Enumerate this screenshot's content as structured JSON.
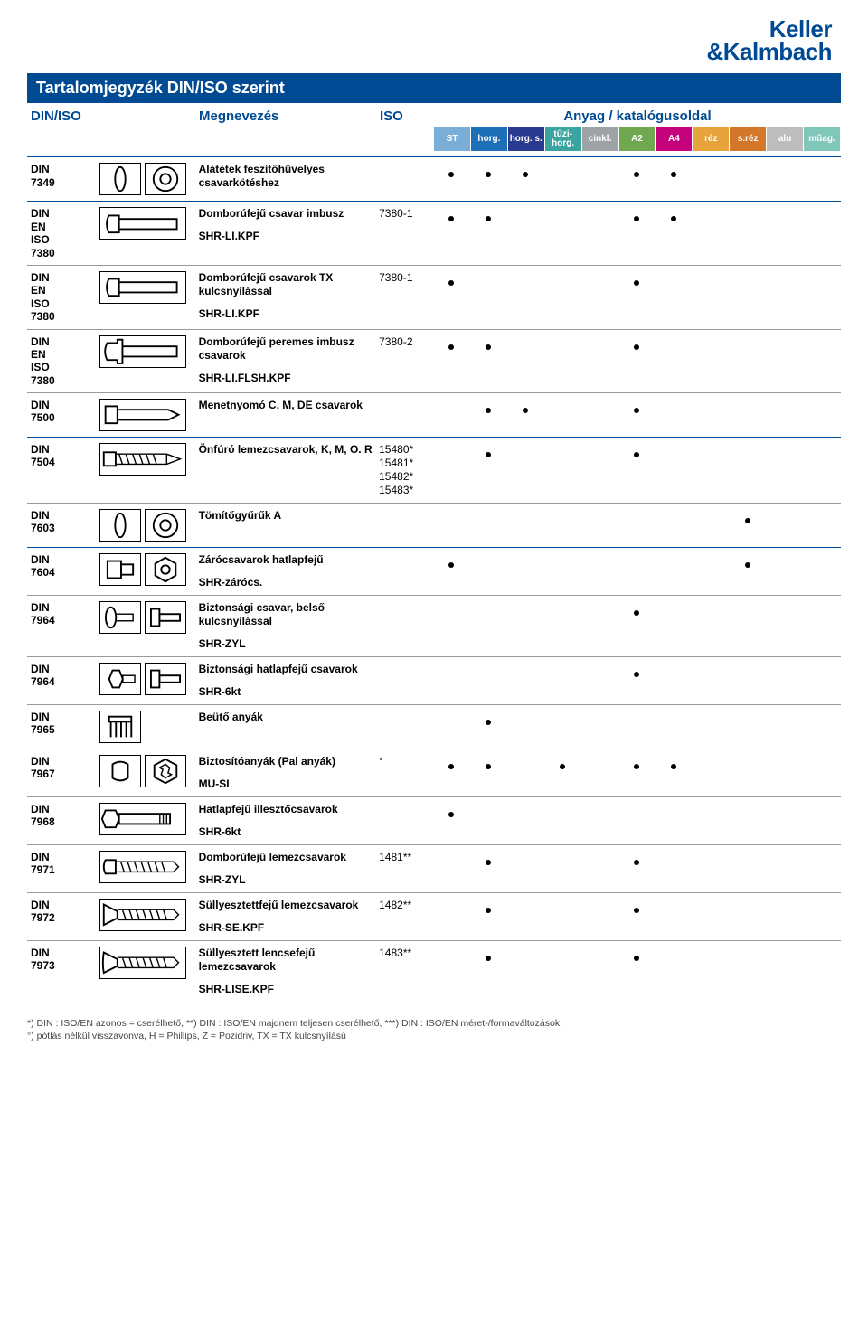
{
  "brand": {
    "line1": "Keller",
    "line2": "&Kalmbach"
  },
  "title": "Tartalomjegyzék DIN/ISO szerint",
  "headers": {
    "din": "DIN/ISO",
    "name": "Megnevezés",
    "iso": "ISO",
    "materials": "Anyag / katalógusoldal"
  },
  "material_columns": [
    {
      "label": "ST",
      "color": "#7aaed6"
    },
    {
      "label": "horg.",
      "color": "#1d70b7"
    },
    {
      "label": "horg. s.",
      "color": "#2a3a8f"
    },
    {
      "label": "tűzi-horg.",
      "color": "#3aa4a0"
    },
    {
      "label": "cinkl.",
      "color": "#9ea3a6"
    },
    {
      "label": "A2",
      "color": "#6fa84f"
    },
    {
      "label": "A4",
      "color": "#c4007a"
    },
    {
      "label": "réz",
      "color": "#e8a33d"
    },
    {
      "label": "s.réz",
      "color": "#d4772a"
    },
    {
      "label": "alu",
      "color": "#bdbdbd"
    },
    {
      "label": "műag.",
      "color": "#7fc7b8"
    }
  ],
  "groups": [
    {
      "rows": [
        {
          "std": "DIN\n7349",
          "icon": "washer-pair",
          "name": "Alátétek feszítőhüvelyes csavarkötéshez",
          "sub": "",
          "iso": "",
          "mats": [
            1,
            1,
            1,
            0,
            0,
            1,
            1,
            0,
            0,
            0,
            0
          ]
        }
      ]
    },
    {
      "rows": [
        {
          "std": "DIN\nEN\nISO\n7380",
          "icon": "button-head",
          "name": "Domborúfejű csavar imbusz",
          "sub": "SHR-LI.KPF",
          "iso": "7380-1",
          "mats": [
            1,
            1,
            0,
            0,
            0,
            1,
            1,
            0,
            0,
            0,
            0
          ]
        },
        {
          "std": "DIN\nEN\nISO\n7380",
          "icon": "button-head",
          "name": "Domborúfejű csavarok TX kulcsnyílással",
          "sub": "SHR-LI.KPF",
          "iso": "7380-1",
          "mats": [
            1,
            0,
            0,
            0,
            0,
            1,
            0,
            0,
            0,
            0,
            0
          ]
        },
        {
          "std": "DIN\nEN\nISO\n7380",
          "icon": "flange-button",
          "name": "Domborúfejű peremes imbusz csavarok",
          "sub": "SHR-LI.FLSH.KPF",
          "iso": "7380-2",
          "mats": [
            1,
            1,
            0,
            0,
            0,
            1,
            0,
            0,
            0,
            0,
            0
          ]
        },
        {
          "std": "DIN\n7500",
          "icon": "thread-forming",
          "name": "Menetnyomó C, M, DE csavarok",
          "sub": "",
          "iso": "",
          "mats": [
            0,
            1,
            1,
            0,
            0,
            1,
            0,
            0,
            0,
            0,
            0
          ]
        }
      ]
    },
    {
      "rows": [
        {
          "std": "DIN\n7504",
          "icon": "self-drill",
          "name": "Önfúró lemezcsavarok, K, M, O. R",
          "sub": "",
          "iso": "15480*\n15481*\n15482*\n15483*",
          "mats": [
            0,
            1,
            0,
            0,
            0,
            1,
            0,
            0,
            0,
            0,
            0
          ]
        },
        {
          "std": "DIN\n7603",
          "icon": "washer-pair",
          "name": "Tömítőgyűrűk A",
          "sub": "",
          "iso": "",
          "mats": [
            0,
            0,
            0,
            0,
            0,
            0,
            0,
            0,
            1,
            0,
            0
          ]
        }
      ]
    },
    {
      "rows": [
        {
          "std": "DIN\n7604",
          "icon": "hex-plug",
          "name": "Zárócsavarok hatlapfejű",
          "sub": "SHR-zárócs.",
          "iso": "",
          "mats": [
            1,
            0,
            0,
            0,
            0,
            0,
            0,
            0,
            1,
            0,
            0
          ]
        },
        {
          "std": "DIN\n7964",
          "icon": "sec-int",
          "name": "Biztonsági csavar, belső kulcsnyílással",
          "sub": "SHR-ZYL",
          "iso": "",
          "mats": [
            0,
            0,
            0,
            0,
            0,
            1,
            0,
            0,
            0,
            0,
            0
          ]
        },
        {
          "std": "DIN\n7964",
          "icon": "sec-hex",
          "name": "Biztonsági hatlapfejű csavarok",
          "sub": "SHR-6kt",
          "iso": "",
          "mats": [
            0,
            0,
            0,
            0,
            0,
            1,
            0,
            0,
            0,
            0,
            0
          ]
        },
        {
          "std": "DIN\n7965",
          "icon": "insert-nut",
          "name": "Beütő anyák",
          "sub": "",
          "iso": "",
          "mats": [
            0,
            1,
            0,
            0,
            0,
            0,
            0,
            0,
            0,
            0,
            0
          ]
        }
      ]
    },
    {
      "rows": [
        {
          "std": "DIN\n7967",
          "icon": "pal-nut",
          "name": "Biztosítóanyák (Pal anyák)",
          "sub": "MU-SI",
          "iso": "°",
          "mats": [
            1,
            1,
            0,
            1,
            0,
            1,
            1,
            0,
            0,
            0,
            0
          ]
        },
        {
          "std": "DIN\n7968",
          "icon": "hex-fit",
          "name": "Hatlapfejű illesztőcsavarok",
          "sub": "SHR-6kt",
          "iso": "",
          "mats": [
            1,
            0,
            0,
            0,
            0,
            0,
            0,
            0,
            0,
            0,
            0
          ]
        },
        {
          "std": "DIN\n7971",
          "icon": "pan-sheet",
          "name": "Domborúfejű lemezcsavarok",
          "sub": "SHR-ZYL",
          "iso": "1481**",
          "mats": [
            0,
            1,
            0,
            0,
            0,
            1,
            0,
            0,
            0,
            0,
            0
          ]
        },
        {
          "std": "DIN\n7972",
          "icon": "csk-sheet",
          "name": "Süllyesztettfejű lemezcsavarok",
          "sub": "SHR-SE.KPF",
          "iso": "1482**",
          "mats": [
            0,
            1,
            0,
            0,
            0,
            1,
            0,
            0,
            0,
            0,
            0
          ]
        },
        {
          "std": "DIN\n7973",
          "icon": "raised-csk",
          "name": "Süllyesztett lencsefejű lemezcsavarok",
          "sub": "SHR-LISE.KPF",
          "iso": "1483**",
          "mats": [
            0,
            1,
            0,
            0,
            0,
            1,
            0,
            0,
            0,
            0,
            0
          ]
        }
      ]
    }
  ],
  "footnote": "*) DIN : ISO/EN azonos = cserélhető, **) DIN : ISO/EN majdnem teljesen cserélhető, ***) DIN : ISO/EN méret-/formaváltozások,\n°) pótlás nélkül visszavonva, H = Phillips, Z = Pozidriv, TX = TX kulcsnyílású"
}
